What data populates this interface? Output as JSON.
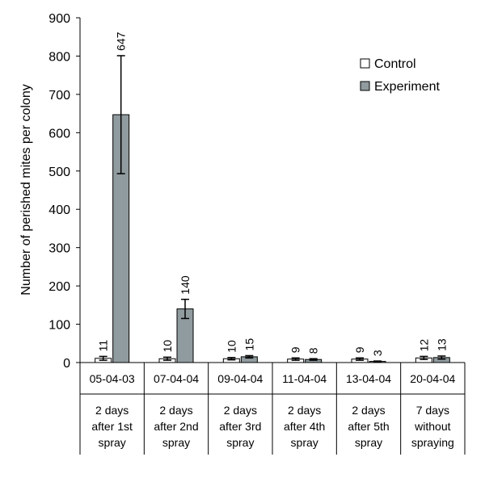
{
  "chart_data": {
    "type": "bar",
    "ylabel": "Number of perished mites per colony",
    "ylim": [
      0,
      900
    ],
    "yticks": [
      "0",
      "100",
      "200",
      "300",
      "400",
      "500",
      "600",
      "700",
      "800",
      "900"
    ],
    "categories": [
      {
        "date": "05-04-03",
        "desc": [
          "2 days",
          "after 1st",
          "spray"
        ]
      },
      {
        "date": "07-04-04",
        "desc": [
          "2 days",
          "after 2nd",
          "spray"
        ]
      },
      {
        "date": "09-04-04",
        "desc": [
          "2 days",
          "after 3rd",
          "spray"
        ]
      },
      {
        "date": "11-04-04",
        "desc": [
          "2 days",
          "after 4th",
          "spray"
        ]
      },
      {
        "date": "13-04-04",
        "desc": [
          "2 days",
          "after 5th",
          "spray"
        ]
      },
      {
        "date": "20-04-04",
        "desc": [
          "7 days",
          "without",
          "spraying"
        ]
      }
    ],
    "series": [
      {
        "name": "Control",
        "color": "#ffffff",
        "values": [
          11,
          10,
          10,
          9,
          9,
          12
        ],
        "labels": [
          "11",
          "10",
          "10",
          "9",
          "9",
          "12"
        ],
        "error": [
          5,
          4,
          3,
          3,
          3,
          4
        ]
      },
      {
        "name": "Experiment",
        "color": "#909b9f",
        "values": [
          647,
          140,
          15,
          8,
          3,
          13
        ],
        "labels": [
          "647",
          "140",
          "15",
          "8",
          "3",
          "13"
        ],
        "error": [
          154,
          25,
          3,
          2,
          1,
          4
        ]
      }
    ],
    "legend_position": "top-right",
    "grid": false
  }
}
